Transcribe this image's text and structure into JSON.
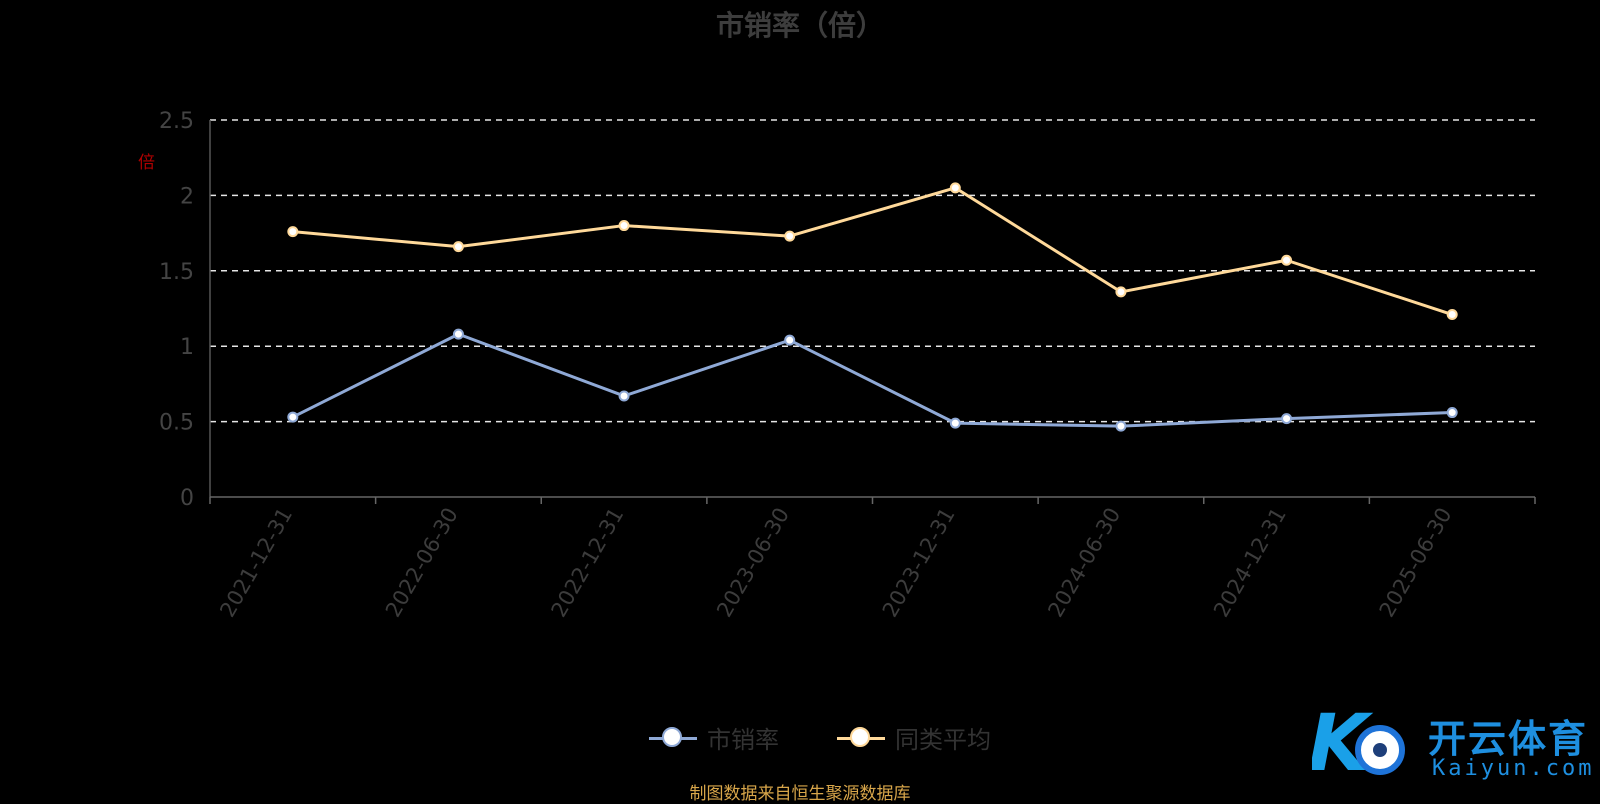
{
  "page": {
    "title": "市销率（倍）",
    "unit_label": "倍",
    "source_note": "制图数据来自恒生聚源数据库",
    "watermark": {
      "brand_cn": "开云体育",
      "brand_en": "Kaiyun.com"
    }
  },
  "chart_data": {
    "type": "line",
    "title": "市销率（倍）",
    "x": [
      "2021-12-31",
      "2022-06-30",
      "2022-12-31",
      "2023-06-30",
      "2023-12-31",
      "2024-06-30",
      "2024-12-31",
      "2025-06-30"
    ],
    "ylim": [
      0,
      2.5
    ],
    "yticks": [
      0,
      0.5,
      1,
      1.5,
      2,
      2.5
    ],
    "ytick_labels": [
      "0",
      "0.5",
      "1",
      "1.5",
      "2",
      "2.5"
    ],
    "grid": true,
    "legend_position": "bottom-center",
    "series": [
      {
        "name": "市销率",
        "color": "#8fa9d6",
        "values": [
          0.53,
          1.08,
          0.67,
          1.04,
          0.49,
          0.47,
          0.52,
          0.56
        ]
      },
      {
        "name": "同类平均",
        "color": "#ffd99a",
        "values": [
          1.76,
          1.66,
          1.8,
          1.73,
          2.05,
          1.36,
          1.57,
          1.21
        ]
      }
    ]
  },
  "legend": [
    {
      "label": "市销率",
      "color": "#8fa9d6"
    },
    {
      "label": "同类平均",
      "color": "#ffd99a"
    }
  ]
}
